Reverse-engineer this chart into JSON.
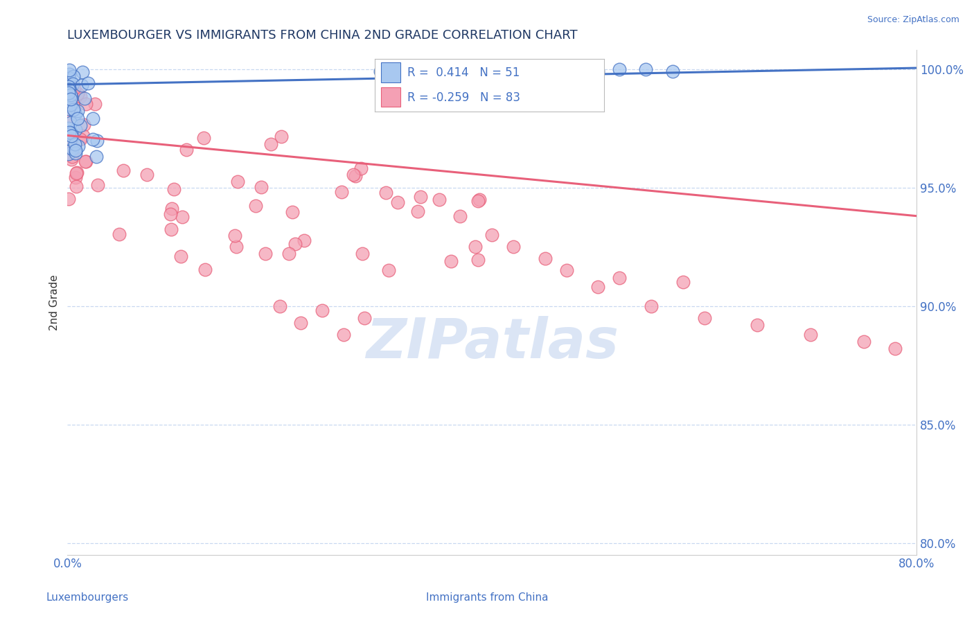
{
  "title": "LUXEMBOURGER VS IMMIGRANTS FROM CHINA 2ND GRADE CORRELATION CHART",
  "source": "Source: ZipAtlas.com",
  "xlabel_left": "Luxembourgers",
  "xlabel_right": "Immigrants from China",
  "ylabel": "2nd Grade",
  "x_min": 0.0,
  "x_max": 0.8,
  "y_min": 0.795,
  "y_max": 1.008,
  "y_ticks": [
    0.8,
    0.85,
    0.9,
    0.95,
    1.0
  ],
  "y_tick_labels": [
    "80.0%",
    "85.0%",
    "90.0%",
    "95.0%",
    "100.0%"
  ],
  "x_ticks": [
    0.0,
    0.1,
    0.2,
    0.3,
    0.4,
    0.5,
    0.6,
    0.7,
    0.8
  ],
  "x_tick_labels": [
    "0.0%",
    "",
    "",
    "",
    "",
    "",
    "",
    "",
    "80.0%"
  ],
  "blue_R": 0.414,
  "blue_N": 51,
  "pink_R": -0.259,
  "pink_N": 83,
  "blue_color": "#A8C8F0",
  "pink_color": "#F4A0B4",
  "blue_line_color": "#4472C4",
  "pink_line_color": "#E8607A",
  "blue_trend_x": [
    0.0,
    0.8
  ],
  "blue_trend_y": [
    0.9935,
    1.0005
  ],
  "pink_trend_x": [
    0.0,
    0.8
  ],
  "pink_trend_y": [
    0.972,
    0.938
  ],
  "watermark": "ZIPatlas",
  "title_color": "#1F3864",
  "axis_label_color": "#4472C4",
  "tick_color": "#4472C4",
  "grid_color": "#C8D8F0",
  "background_color": "#FFFFFF"
}
